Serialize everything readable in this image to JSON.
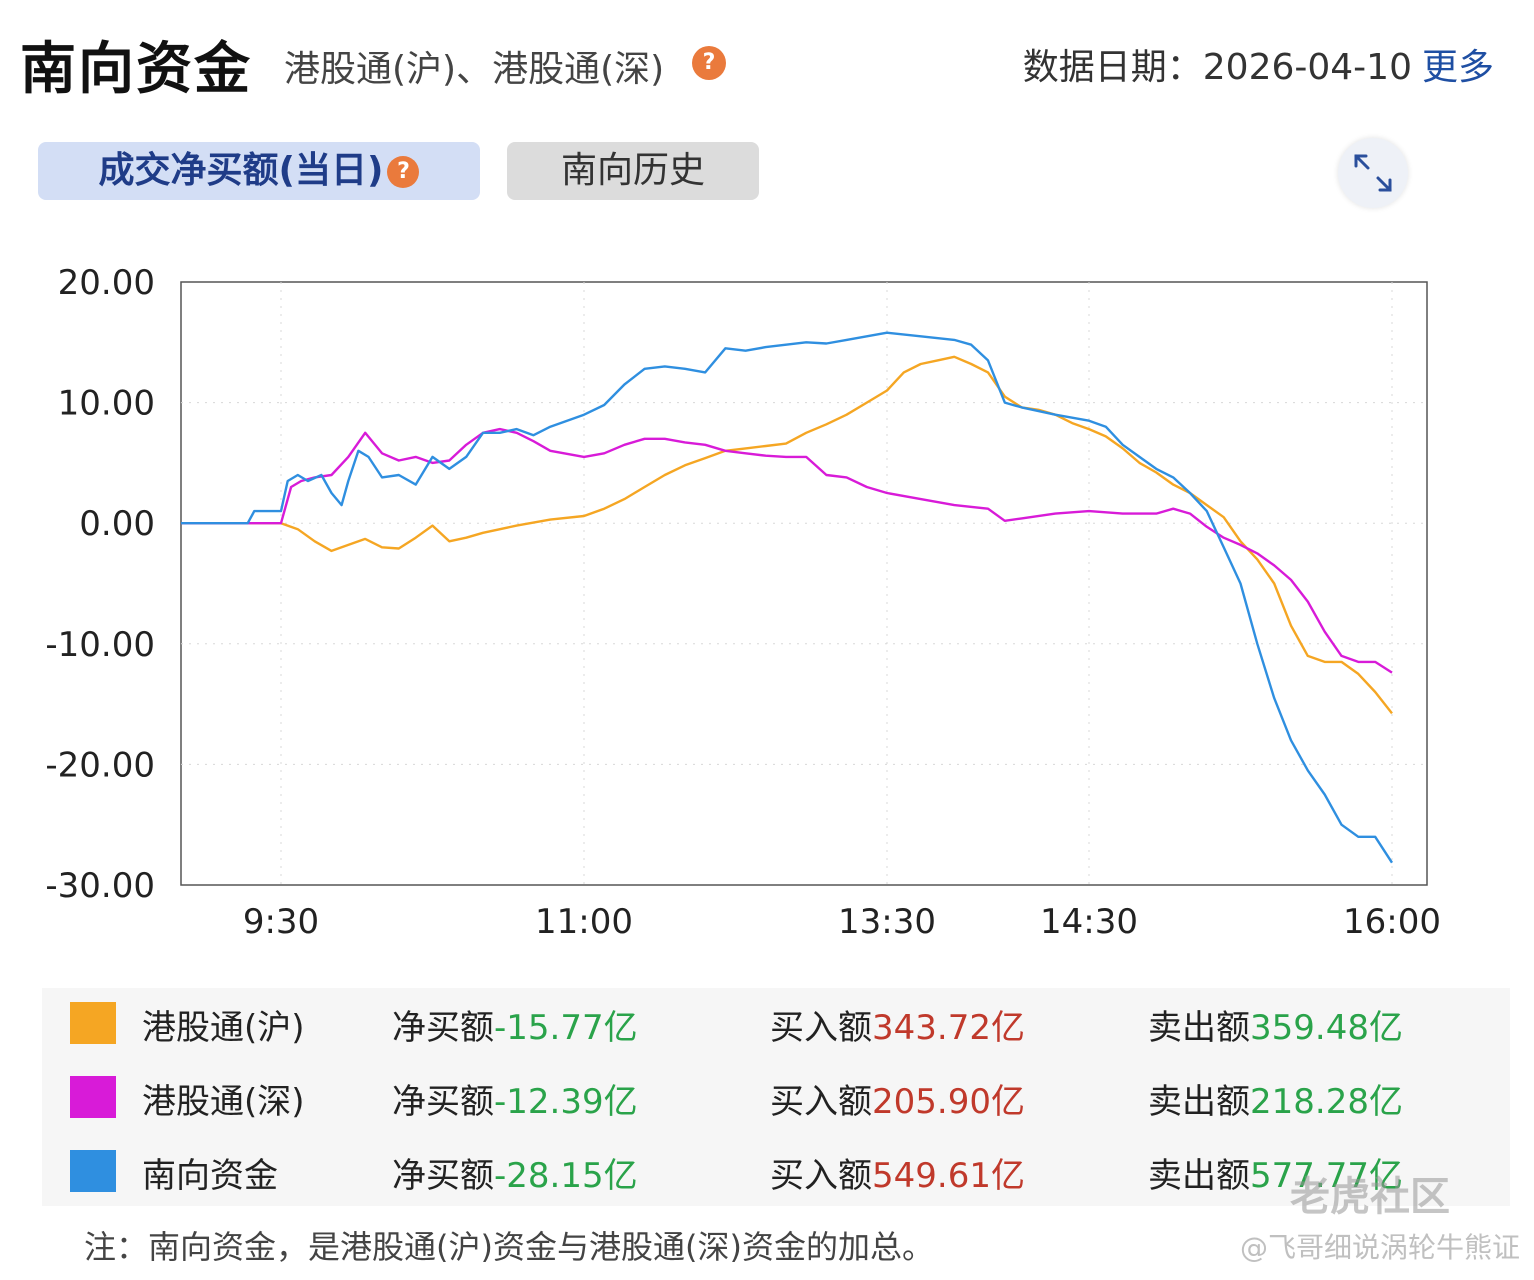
{
  "header": {
    "title": "南向资金",
    "subtitle": "港股通(沪)、港股通(深)",
    "help_icon": "?",
    "date_label": "数据日期：",
    "date_value": "2026-04-10",
    "more_label": "更多"
  },
  "tabs": [
    {
      "label": "成交净买额(当日)",
      "active": true
    },
    {
      "label": "南向历史",
      "active": false
    }
  ],
  "expand_icon": "expand-arrows-icon",
  "colors": {
    "hgt_sh": "#f5a623",
    "hgt_sz": "#d81bd8",
    "southbound": "#2f8fe0",
    "positive": "#c0392b",
    "negative": "#2aa34a"
  },
  "chart_data": {
    "type": "line",
    "y_tick_labels": [
      "20.00",
      "10.00",
      "0.00",
      "-10.00",
      "-20.00",
      "-30.00"
    ],
    "ylim": [
      -30,
      20
    ],
    "x_tick_labels": [
      "9:30",
      "11:00",
      "13:30",
      "14:30",
      "16:00"
    ],
    "grid": true,
    "series": [
      {
        "name": "港股通(沪)",
        "color": "#f5a623",
        "points": [
          [
            "9:00",
            0.0
          ],
          [
            "9:30",
            0.0
          ],
          [
            "9:35",
            -0.5
          ],
          [
            "9:40",
            -1.5
          ],
          [
            "9:45",
            -2.3
          ],
          [
            "9:50",
            -1.8
          ],
          [
            "9:55",
            -1.3
          ],
          [
            "10:00",
            -2.0
          ],
          [
            "10:05",
            -2.1
          ],
          [
            "10:10",
            -1.2
          ],
          [
            "10:15",
            -0.2
          ],
          [
            "10:20",
            -1.5
          ],
          [
            "10:25",
            -1.2
          ],
          [
            "10:30",
            -0.8
          ],
          [
            "10:40",
            -0.2
          ],
          [
            "10:50",
            0.3
          ],
          [
            "11:00",
            0.6
          ],
          [
            "11:10",
            1.2
          ],
          [
            "11:20",
            2.0
          ],
          [
            "11:30",
            3.0
          ],
          [
            "11:40",
            4.0
          ],
          [
            "11:50",
            4.8
          ],
          [
            "12:00",
            5.4
          ],
          [
            "12:10",
            6.0
          ],
          [
            "12:20",
            6.2
          ],
          [
            "12:30",
            6.4
          ],
          [
            "12:40",
            6.6
          ],
          [
            "12:50",
            7.5
          ],
          [
            "13:00",
            8.2
          ],
          [
            "13:10",
            9.0
          ],
          [
            "13:20",
            10.0
          ],
          [
            "13:30",
            11.0
          ],
          [
            "13:35",
            12.5
          ],
          [
            "13:40",
            13.2
          ],
          [
            "13:45",
            13.5
          ],
          [
            "13:50",
            13.8
          ],
          [
            "13:55",
            13.2
          ],
          [
            "14:00",
            12.5
          ],
          [
            "14:05",
            10.5
          ],
          [
            "14:10",
            9.6
          ],
          [
            "14:15",
            9.4
          ],
          [
            "14:20",
            9.0
          ],
          [
            "14:25",
            8.3
          ],
          [
            "14:30",
            7.8
          ],
          [
            "14:35",
            7.2
          ],
          [
            "14:40",
            6.2
          ],
          [
            "14:45",
            5.0
          ],
          [
            "14:50",
            4.2
          ],
          [
            "14:55",
            3.2
          ],
          [
            "15:00",
            2.5
          ],
          [
            "15:05",
            1.5
          ],
          [
            "15:10",
            0.5
          ],
          [
            "15:15",
            -1.5
          ],
          [
            "15:20",
            -3.0
          ],
          [
            "15:25",
            -5.0
          ],
          [
            "15:30",
            -8.5
          ],
          [
            "15:35",
            -11.0
          ],
          [
            "15:40",
            -11.5
          ],
          [
            "15:45",
            -11.5
          ],
          [
            "15:50",
            -12.5
          ],
          [
            "15:55",
            -14.0
          ],
          [
            "16:00",
            -15.77
          ]
        ]
      },
      {
        "name": "港股通(深)",
        "color": "#d81bd8",
        "points": [
          [
            "9:00",
            0.0
          ],
          [
            "9:30",
            0.0
          ],
          [
            "9:33",
            3.0
          ],
          [
            "9:36",
            3.5
          ],
          [
            "9:40",
            3.8
          ],
          [
            "9:45",
            4.0
          ],
          [
            "9:50",
            5.5
          ],
          [
            "9:55",
            7.5
          ],
          [
            "10:00",
            5.8
          ],
          [
            "10:05",
            5.2
          ],
          [
            "10:10",
            5.5
          ],
          [
            "10:15",
            5.0
          ],
          [
            "10:20",
            5.2
          ],
          [
            "10:25",
            6.5
          ],
          [
            "10:30",
            7.5
          ],
          [
            "10:35",
            7.8
          ],
          [
            "10:40",
            7.5
          ],
          [
            "10:45",
            6.8
          ],
          [
            "10:50",
            6.0
          ],
          [
            "11:00",
            5.5
          ],
          [
            "11:10",
            5.8
          ],
          [
            "11:20",
            6.5
          ],
          [
            "11:30",
            7.0
          ],
          [
            "11:40",
            7.0
          ],
          [
            "11:50",
            6.7
          ],
          [
            "12:00",
            6.5
          ],
          [
            "12:10",
            6.0
          ],
          [
            "12:20",
            5.8
          ],
          [
            "12:30",
            5.6
          ],
          [
            "12:40",
            5.5
          ],
          [
            "12:50",
            5.5
          ],
          [
            "13:00",
            4.0
          ],
          [
            "13:10",
            3.8
          ],
          [
            "13:20",
            3.0
          ],
          [
            "13:30",
            2.5
          ],
          [
            "13:40",
            2.0
          ],
          [
            "13:50",
            1.5
          ],
          [
            "14:00",
            1.2
          ],
          [
            "14:05",
            0.2
          ],
          [
            "14:10",
            0.4
          ],
          [
            "14:20",
            0.8
          ],
          [
            "14:30",
            1.0
          ],
          [
            "14:40",
            0.8
          ],
          [
            "14:50",
            0.8
          ],
          [
            "14:55",
            1.2
          ],
          [
            "15:00",
            0.8
          ],
          [
            "15:05",
            -0.3
          ],
          [
            "15:10",
            -1.2
          ],
          [
            "15:15",
            -1.8
          ],
          [
            "15:20",
            -2.5
          ],
          [
            "15:25",
            -3.5
          ],
          [
            "15:30",
            -4.7
          ],
          [
            "15:35",
            -6.5
          ],
          [
            "15:40",
            -9.0
          ],
          [
            "15:45",
            -11.0
          ],
          [
            "15:50",
            -11.5
          ],
          [
            "15:55",
            -11.5
          ],
          [
            "16:00",
            -12.39
          ]
        ]
      },
      {
        "name": "南向资金",
        "color": "#2f8fe0",
        "points": [
          [
            "9:00",
            0.0
          ],
          [
            "9:20",
            0.0
          ],
          [
            "9:22",
            1.0
          ],
          [
            "9:30",
            1.0
          ],
          [
            "9:32",
            3.5
          ],
          [
            "9:35",
            4.0
          ],
          [
            "9:38",
            3.5
          ],
          [
            "9:42",
            4.0
          ],
          [
            "9:45",
            2.5
          ],
          [
            "9:48",
            1.5
          ],
          [
            "9:50",
            3.5
          ],
          [
            "9:53",
            6.0
          ],
          [
            "9:56",
            5.5
          ],
          [
            "10:00",
            3.8
          ],
          [
            "10:05",
            4.0
          ],
          [
            "10:10",
            3.2
          ],
          [
            "10:15",
            5.5
          ],
          [
            "10:20",
            4.5
          ],
          [
            "10:25",
            5.5
          ],
          [
            "10:30",
            7.5
          ],
          [
            "10:35",
            7.5
          ],
          [
            "10:40",
            7.8
          ],
          [
            "10:45",
            7.3
          ],
          [
            "10:50",
            8.0
          ],
          [
            "11:00",
            9.0
          ],
          [
            "11:10",
            9.8
          ],
          [
            "11:20",
            11.5
          ],
          [
            "11:30",
            12.8
          ],
          [
            "11:40",
            13.0
          ],
          [
            "11:50",
            12.8
          ],
          [
            "12:00",
            12.5
          ],
          [
            "12:10",
            14.5
          ],
          [
            "12:20",
            14.3
          ],
          [
            "12:30",
            14.6
          ],
          [
            "12:40",
            14.8
          ],
          [
            "12:50",
            15.0
          ],
          [
            "13:00",
            14.9
          ],
          [
            "13:10",
            15.2
          ],
          [
            "13:20",
            15.5
          ],
          [
            "13:30",
            15.8
          ],
          [
            "13:40",
            15.5
          ],
          [
            "13:50",
            15.2
          ],
          [
            "13:55",
            14.8
          ],
          [
            "14:00",
            13.5
          ],
          [
            "14:05",
            10.0
          ],
          [
            "14:10",
            9.6
          ],
          [
            "14:20",
            9.0
          ],
          [
            "14:30",
            8.5
          ],
          [
            "14:35",
            8.0
          ],
          [
            "14:40",
            6.5
          ],
          [
            "14:45",
            5.5
          ],
          [
            "14:50",
            4.5
          ],
          [
            "14:55",
            3.8
          ],
          [
            "15:00",
            2.5
          ],
          [
            "15:05",
            1.0
          ],
          [
            "15:10",
            -2.0
          ],
          [
            "15:15",
            -5.0
          ],
          [
            "15:20",
            -10.0
          ],
          [
            "15:25",
            -14.5
          ],
          [
            "15:30",
            -18.0
          ],
          [
            "15:35",
            -20.5
          ],
          [
            "15:40",
            -22.5
          ],
          [
            "15:45",
            -25.0
          ],
          [
            "15:50",
            -26.0
          ],
          [
            "15:55",
            -26.0
          ],
          [
            "16:00",
            -28.15
          ]
        ]
      }
    ]
  },
  "legend": [
    {
      "name": "港股通(沪)",
      "net_label": "净买额",
      "net_value": "-15.77亿",
      "buy_label": "买入额",
      "buy_value": "343.72亿",
      "sell_label": "卖出额",
      "sell_value": "359.48亿"
    },
    {
      "name": "港股通(深)",
      "net_label": "净买额",
      "net_value": "-12.39亿",
      "buy_label": "买入额",
      "buy_value": "205.90亿",
      "sell_label": "卖出额",
      "sell_value": "218.28亿"
    },
    {
      "name": "南向资金",
      "net_label": "净买额",
      "net_value": "-28.15亿",
      "buy_label": "买入额",
      "buy_value": "549.61亿",
      "sell_label": "卖出额",
      "sell_value": "577.77亿"
    }
  ],
  "note": "注：南向资金，是港股通(沪)资金与港股通(深)资金的加总。",
  "watermark": {
    "brand": "老虎社区",
    "author": "@飞哥细说涡轮牛熊证"
  }
}
